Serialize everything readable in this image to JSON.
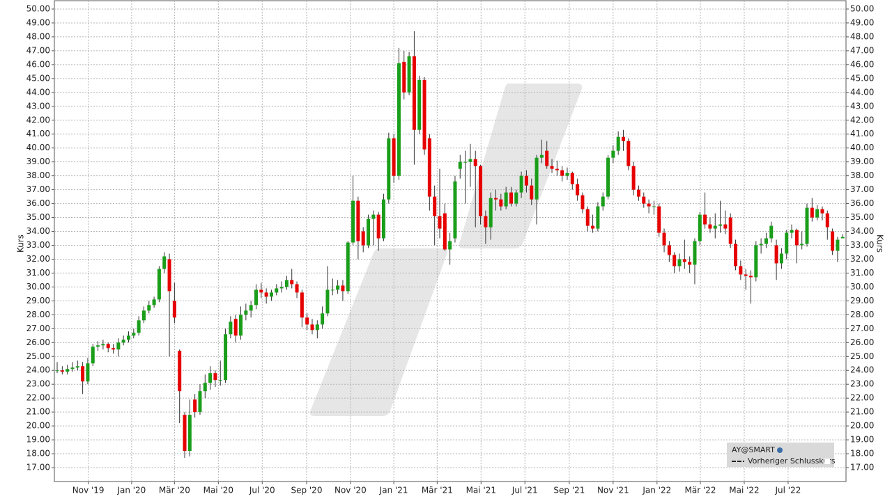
{
  "chart_data": {
    "type": "candlestick",
    "y_label": "Kurs",
    "legend": {
      "title": "AY@SMART",
      "entry": "Vorheriger Schlusskurs"
    },
    "up_color": "#1a9e1a",
    "down_color": "#e60000",
    "grid": true,
    "ylim": [
      16.0,
      50.6
    ],
    "yticks": [
      {
        "value": 17,
        "label": "17.00"
      },
      {
        "value": 18,
        "label": "18.00"
      },
      {
        "value": 19,
        "label": "19.00"
      },
      {
        "value": 20,
        "label": "20.00"
      },
      {
        "value": 21,
        "label": "21.00"
      },
      {
        "value": 22,
        "label": "22.00"
      },
      {
        "value": 23,
        "label": "23.00"
      },
      {
        "value": 24,
        "label": "24.00"
      },
      {
        "value": 25,
        "label": "25.00"
      },
      {
        "value": 26,
        "label": "26.00"
      },
      {
        "value": 27,
        "label": "27.00"
      },
      {
        "value": 28,
        "label": "28.00"
      },
      {
        "value": 29,
        "label": "29.00"
      },
      {
        "value": 30,
        "label": "30.00"
      },
      {
        "value": 31,
        "label": "31.00"
      },
      {
        "value": 32,
        "label": "32.00"
      },
      {
        "value": 33,
        "label": "33.00"
      },
      {
        "value": 34,
        "label": "34.00"
      },
      {
        "value": 35,
        "label": "35.00"
      },
      {
        "value": 36,
        "label": "36.00"
      },
      {
        "value": 37,
        "label": "37.00"
      },
      {
        "value": 38,
        "label": "38.00"
      },
      {
        "value": 39,
        "label": "39.00"
      },
      {
        "value": 40,
        "label": "40.00"
      },
      {
        "value": 41,
        "label": "41.00"
      },
      {
        "value": 42,
        "label": "42.00"
      },
      {
        "value": 43,
        "label": "43.00"
      },
      {
        "value": 44,
        "label": "44.00"
      },
      {
        "value": 45,
        "label": "45.00"
      },
      {
        "value": 46,
        "label": "46.00"
      },
      {
        "value": 47,
        "label": "47.00"
      },
      {
        "value": 48,
        "label": "48.00"
      },
      {
        "value": 49,
        "label": "49.00"
      },
      {
        "value": 50,
        "label": "50.00"
      }
    ],
    "xlim": [
      -0.55,
      154.65
    ],
    "xticks": [
      {
        "value": 6.1,
        "label": "Nov '19"
      },
      {
        "value": 14.6,
        "label": "Jan '20"
      },
      {
        "value": 23.0,
        "label": "Mär '20"
      },
      {
        "value": 31.6,
        "label": "Mai '20"
      },
      {
        "value": 40.2,
        "label": "Jul '20"
      },
      {
        "value": 48.9,
        "label": "Sep '20"
      },
      {
        "value": 57.5,
        "label": "Nov '20"
      },
      {
        "value": 66.0,
        "label": "Jan '21"
      },
      {
        "value": 74.5,
        "label": "Mär '21"
      },
      {
        "value": 83.1,
        "label": "Mai '21"
      },
      {
        "value": 91.7,
        "label": "Jul '21"
      },
      {
        "value": 100.4,
        "label": "Sep '21"
      },
      {
        "value": 109.0,
        "label": "Nov '21"
      },
      {
        "value": 117.6,
        "label": "Jan '22"
      },
      {
        "value": 126.1,
        "label": "Mär '22"
      },
      {
        "value": 134.7,
        "label": "Mai '22"
      },
      {
        "value": 143.3,
        "label": "Jul '22"
      }
    ],
    "candles": [
      [
        24.0,
        24.6,
        23.8,
        24.0
      ],
      [
        24.0,
        24.3,
        23.7,
        23.9
      ],
      [
        23.9,
        24.4,
        23.7,
        24.1
      ],
      [
        24.1,
        24.6,
        23.9,
        24.2
      ],
      [
        24.2,
        24.7,
        24.0,
        24.3
      ],
      [
        24.3,
        24.6,
        22.3,
        23.2
      ],
      [
        23.2,
        24.9,
        23.0,
        24.5
      ],
      [
        24.5,
        25.9,
        24.3,
        25.7
      ],
      [
        25.7,
        26.1,
        25.4,
        25.8
      ],
      [
        25.8,
        26.2,
        25.5,
        25.9
      ],
      [
        25.9,
        26.0,
        25.3,
        25.6
      ],
      [
        25.6,
        25.9,
        25.2,
        25.5
      ],
      [
        25.5,
        26.3,
        25.0,
        26.0
      ],
      [
        26.0,
        26.5,
        25.8,
        26.2
      ],
      [
        26.2,
        26.8,
        26.0,
        26.5
      ],
      [
        26.5,
        27.0,
        26.3,
        26.7
      ],
      [
        26.7,
        27.9,
        26.5,
        27.6
      ],
      [
        27.6,
        28.6,
        27.4,
        28.3
      ],
      [
        28.3,
        29.0,
        28.1,
        28.7
      ],
      [
        28.7,
        29.3,
        28.5,
        29.1
      ],
      [
        29.1,
        31.5,
        28.9,
        31.3
      ],
      [
        31.3,
        32.5,
        31.0,
        32.2
      ],
      [
        32.0,
        32.4,
        25.0,
        29.7
      ],
      [
        29.0,
        30.3,
        27.4,
        27.8
      ],
      [
        25.4,
        25.5,
        20.2,
        22.5
      ],
      [
        20.8,
        21.0,
        17.7,
        18.2
      ],
      [
        18.2,
        21.9,
        17.8,
        20.8
      ],
      [
        21.9,
        22.3,
        20.6,
        21.0
      ],
      [
        21.0,
        23.0,
        20.8,
        22.5
      ],
      [
        22.5,
        23.7,
        22.0,
        23.1
      ],
      [
        23.1,
        24.3,
        22.6,
        23.8
      ],
      [
        23.8,
        24.0,
        22.8,
        23.3
      ],
      [
        23.3,
        24.7,
        22.9,
        23.3
      ],
      [
        23.3,
        27.0,
        23.1,
        26.6
      ],
      [
        26.6,
        27.9,
        26.3,
        27.5
      ],
      [
        27.7,
        28.0,
        26.0,
        26.5
      ],
      [
        26.5,
        28.6,
        26.2,
        28.0
      ],
      [
        28.0,
        28.8,
        27.6,
        28.3
      ],
      [
        28.3,
        29.0,
        27.8,
        28.7
      ],
      [
        28.7,
        30.2,
        28.4,
        29.8
      ],
      [
        29.8,
        30.3,
        29.2,
        29.6
      ],
      [
        29.6,
        29.9,
        28.8,
        29.3
      ],
      [
        29.3,
        29.8,
        29.0,
        29.6
      ],
      [
        29.6,
        30.2,
        29.4,
        29.9
      ],
      [
        29.9,
        30.4,
        29.6,
        30.0
      ],
      [
        30.0,
        30.8,
        29.8,
        30.5
      ],
      [
        30.5,
        31.3,
        29.9,
        30.2
      ],
      [
        30.2,
        30.4,
        29.2,
        29.6
      ],
      [
        29.6,
        29.8,
        27.1,
        27.8
      ],
      [
        27.8,
        28.1,
        26.9,
        27.3
      ],
      [
        27.3,
        27.7,
        26.6,
        26.9
      ],
      [
        26.9,
        27.6,
        26.3,
        27.3
      ],
      [
        27.3,
        28.6,
        27.0,
        28.1
      ],
      [
        28.1,
        31.5,
        27.9,
        29.8
      ],
      [
        29.8,
        30.6,
        29.4,
        29.8
      ],
      [
        29.8,
        30.5,
        29.5,
        30.1
      ],
      [
        30.1,
        30.5,
        29.0,
        29.7
      ],
      [
        29.7,
        33.3,
        29.5,
        33.2
      ],
      [
        33.2,
        38.0,
        33.0,
        36.2
      ],
      [
        36.2,
        36.5,
        32.0,
        33.3
      ],
      [
        34.0,
        34.3,
        32.5,
        33.0
      ],
      [
        33.0,
        35.2,
        32.8,
        34.9
      ],
      [
        34.9,
        35.5,
        33.0,
        35.2
      ],
      [
        35.2,
        35.4,
        32.6,
        33.5
      ],
      [
        33.5,
        36.7,
        33.3,
        36.3
      ],
      [
        36.3,
        41.1,
        36.0,
        40.7
      ],
      [
        40.7,
        41.0,
        37.5,
        38.0
      ],
      [
        38.0,
        47.2,
        37.7,
        46.1
      ],
      [
        46.2,
        47.0,
        43.5,
        44.0
      ],
      [
        44.0,
        46.9,
        43.8,
        46.6
      ],
      [
        46.6,
        48.4,
        38.8,
        41.3
      ],
      [
        41.3,
        45.2,
        41.0,
        44.9
      ],
      [
        44.9,
        45.1,
        39.5,
        39.9
      ],
      [
        40.7,
        41.0,
        35.5,
        36.5
      ],
      [
        36.5,
        37.3,
        33.0,
        35.1
      ],
      [
        35.1,
        38.5,
        33.5,
        34.2
      ],
      [
        35.3,
        36.0,
        32.6,
        32.7
      ],
      [
        32.7,
        33.9,
        31.6,
        33.3
      ],
      [
        33.5,
        38.0,
        33.2,
        37.6
      ],
      [
        38.5,
        39.5,
        37.8,
        39.0
      ],
      [
        39.0,
        39.8,
        36.0,
        39.0
      ],
      [
        39.0,
        40.3,
        37.2,
        39.2
      ],
      [
        39.2,
        39.8,
        34.3,
        38.7
      ],
      [
        38.7,
        38.8,
        34.5,
        35.1
      ],
      [
        35.1,
        35.5,
        33.1,
        34.3
      ],
      [
        34.3,
        36.8,
        33.4,
        36.4
      ],
      [
        36.4,
        37.0,
        35.5,
        36.3
      ],
      [
        36.3,
        36.7,
        35.5,
        35.8
      ],
      [
        35.8,
        37.2,
        35.6,
        36.8
      ],
      [
        36.8,
        37.2,
        35.8,
        36.0
      ],
      [
        36.0,
        37.0,
        35.8,
        36.8
      ],
      [
        36.8,
        38.3,
        36.4,
        38.0
      ],
      [
        38.0,
        38.4,
        36.8,
        37.3
      ],
      [
        37.3,
        37.8,
        35.9,
        36.3
      ],
      [
        36.3,
        39.5,
        34.5,
        39.3
      ],
      [
        39.3,
        40.6,
        38.9,
        39.5
      ],
      [
        39.8,
        40.5,
        38.5,
        38.7
      ],
      [
        38.7,
        39.2,
        38.2,
        38.5
      ],
      [
        38.5,
        39.1,
        38.0,
        38.4
      ],
      [
        38.4,
        38.7,
        37.6,
        38.0
      ],
      [
        38.0,
        38.6,
        37.7,
        38.2
      ],
      [
        38.2,
        38.3,
        37.0,
        37.4
      ],
      [
        37.4,
        37.8,
        36.2,
        36.6
      ],
      [
        36.6,
        36.8,
        35.3,
        35.6
      ],
      [
        35.6,
        35.8,
        34.0,
        34.4
      ],
      [
        34.4,
        35.2,
        33.9,
        34.2
      ],
      [
        34.2,
        36.1,
        34.0,
        35.8
      ],
      [
        35.8,
        36.8,
        35.5,
        36.5
      ],
      [
        36.5,
        39.5,
        36.3,
        39.3
      ],
      [
        39.3,
        40.2,
        38.9,
        39.8
      ],
      [
        39.8,
        41.2,
        39.5,
        40.8
      ],
      [
        40.8,
        41.3,
        39.8,
        40.5
      ],
      [
        40.5,
        40.7,
        38.4,
        38.7
      ],
      [
        38.7,
        39.0,
        36.6,
        37.0
      ],
      [
        37.0,
        37.3,
        36.2,
        36.5
      ],
      [
        36.5,
        36.8,
        35.7,
        36.0
      ],
      [
        36.0,
        36.3,
        35.3,
        35.8
      ],
      [
        35.8,
        36.2,
        35.2,
        35.8
      ],
      [
        35.8,
        36.0,
        33.6,
        33.9
      ],
      [
        33.9,
        34.2,
        32.5,
        33.0
      ],
      [
        33.0,
        33.3,
        31.8,
        32.3
      ],
      [
        32.3,
        32.5,
        31.0,
        31.5
      ],
      [
        31.5,
        32.4,
        31.1,
        32.0
      ],
      [
        32.0,
        33.4,
        31.3,
        31.8
      ],
      [
        31.8,
        32.2,
        31.0,
        31.6
      ],
      [
        31.6,
        33.5,
        30.2,
        33.3
      ],
      [
        33.3,
        35.4,
        33.0,
        35.2
      ],
      [
        35.2,
        36.8,
        34.2,
        34.5
      ],
      [
        34.5,
        35.0,
        33.9,
        34.2
      ],
      [
        34.2,
        35.3,
        33.5,
        34.4
      ],
      [
        34.4,
        36.2,
        33.9,
        34.5
      ],
      [
        34.5,
        35.5,
        33.8,
        34.2
      ],
      [
        35.0,
        35.3,
        32.8,
        33.1
      ],
      [
        33.1,
        33.4,
        31.2,
        31.5
      ],
      [
        31.5,
        31.9,
        30.5,
        30.9
      ],
      [
        30.9,
        31.3,
        29.8,
        30.8
      ],
      [
        30.8,
        31.2,
        28.8,
        30.7
      ],
      [
        30.7,
        33.3,
        30.4,
        33.0
      ],
      [
        33.0,
        33.5,
        32.4,
        33.1
      ],
      [
        33.1,
        33.9,
        32.8,
        33.5
      ],
      [
        33.5,
        34.7,
        33.2,
        34.4
      ],
      [
        33.0,
        33.4,
        30.5,
        31.7
      ],
      [
        31.7,
        32.8,
        31.3,
        32.4
      ],
      [
        32.4,
        34.1,
        32.0,
        33.9
      ],
      [
        33.9,
        34.5,
        33.5,
        34.1
      ],
      [
        34.1,
        34.2,
        31.7,
        33.0
      ],
      [
        33.0,
        34.0,
        32.7,
        33.1
      ],
      [
        33.1,
        36.0,
        32.9,
        35.7
      ],
      [
        35.7,
        36.4,
        34.7,
        35.0
      ],
      [
        35.0,
        35.9,
        34.8,
        35.6
      ],
      [
        35.6,
        35.8,
        34.8,
        35.3
      ],
      [
        35.3,
        35.5,
        33.4,
        34.3
      ],
      [
        34.0,
        34.2,
        32.3,
        32.6
      ],
      [
        32.6,
        33.6,
        31.8,
        33.4
      ],
      [
        33.5,
        33.8,
        33.5,
        33.6
      ]
    ]
  }
}
